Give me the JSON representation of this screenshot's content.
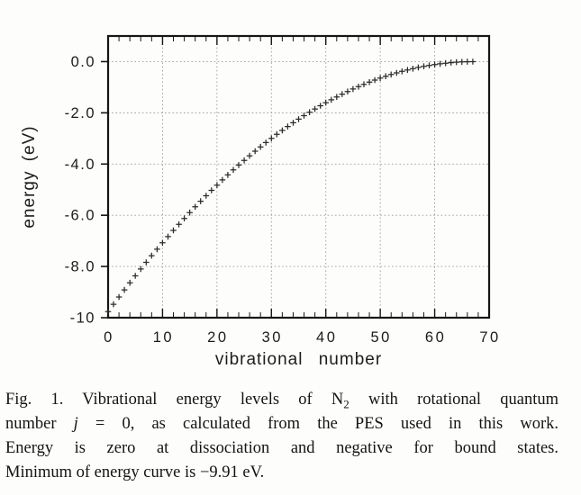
{
  "page": {
    "background": "#fdfdfb"
  },
  "chart_data": {
    "type": "scatter",
    "title": "",
    "xlabel": "vibrational number",
    "ylabel": "energy (eV)",
    "marker": "plus",
    "marker_color": "#2b2b2b",
    "frame_color": "#161616",
    "grid_color": "#9c9c98",
    "text_color": "#1c1c1c",
    "grid": true,
    "legend": "none",
    "xlim": [
      0,
      70
    ],
    "ylim": [
      -10,
      1
    ],
    "x_major_ticks": [
      0,
      10,
      20,
      30,
      40,
      50,
      60,
      70
    ],
    "x_tick_labels": [
      "0",
      "10",
      "20",
      "30",
      "40",
      "50",
      "60",
      "70"
    ],
    "x_minor_step": 2,
    "y_major_ticks": [
      0,
      -2,
      -4,
      -6,
      -8,
      -10
    ],
    "y_tick_labels": [
      "0.0",
      "-2.0",
      "-4.0",
      "-6.0",
      "-8.0",
      "-10"
    ],
    "x_gridlines": [
      10,
      20,
      30,
      40,
      50,
      60
    ],
    "y_gridlines": [
      0,
      -2,
      -4,
      -6,
      -8
    ],
    "series": [
      {
        "name": "N2 vibrational energy levels (j = 0)",
        "x": [
          0,
          1,
          2,
          3,
          4,
          5,
          6,
          7,
          8,
          9,
          10,
          11,
          12,
          13,
          14,
          15,
          16,
          17,
          18,
          19,
          20,
          21,
          22,
          23,
          24,
          25,
          26,
          27,
          28,
          29,
          30,
          31,
          32,
          33,
          34,
          35,
          36,
          37,
          38,
          39,
          40,
          41,
          42,
          43,
          44,
          45,
          46,
          47,
          48,
          49,
          50,
          51,
          52,
          53,
          54,
          55,
          56,
          57,
          58,
          59,
          60,
          61,
          62,
          63,
          64,
          65,
          66,
          67
        ],
        "y": [
          -9.764,
          -9.476,
          -9.193,
          -8.913,
          -8.638,
          -8.367,
          -8.1,
          -7.838,
          -7.58,
          -7.327,
          -7.077,
          -6.832,
          -6.592,
          -6.356,
          -6.124,
          -5.896,
          -5.672,
          -5.453,
          -5.239,
          -5.028,
          -4.822,
          -4.62,
          -4.423,
          -4.23,
          -4.041,
          -3.856,
          -3.676,
          -3.5,
          -3.328,
          -3.161,
          -2.998,
          -2.839,
          -2.685,
          -2.535,
          -2.389,
          -2.248,
          -2.111,
          -1.978,
          -1.849,
          -1.725,
          -1.605,
          -1.49,
          -1.379,
          -1.272,
          -1.169,
          -1.071,
          -0.977,
          -0.887,
          -0.802,
          -0.721,
          -0.644,
          -0.572,
          -0.504,
          -0.44,
          -0.38,
          -0.325,
          -0.274,
          -0.228,
          -0.186,
          -0.148,
          -0.114,
          -0.085,
          -0.06,
          -0.04,
          -0.023,
          -0.011,
          -0.004,
          0.0
        ]
      }
    ]
  },
  "caption": {
    "line1_a": "Fig. 1. Vibrational energy levels of N",
    "line1_sub": "2",
    "line1_b": " with rotational quantum",
    "line2_a": "number ",
    "line2_var": "j",
    "line2_b": " = 0, as calculated from the PES used in this work.",
    "line3": "Energy is zero at dissociation and negative for bound states.",
    "line4": "Minimum of energy curve is −9.91 eV."
  }
}
